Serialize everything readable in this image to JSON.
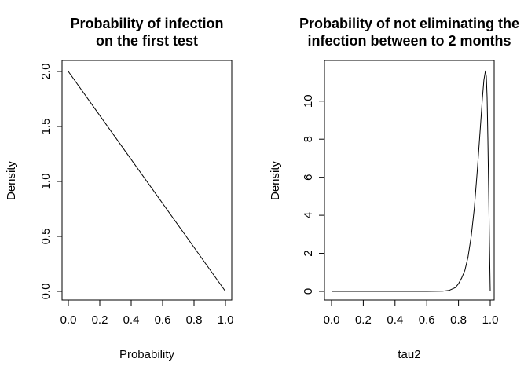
{
  "chart_data": [
    {
      "type": "line",
      "title": [
        "Probability of infection",
        "on the first test"
      ],
      "xlabel": "Probability",
      "ylabel": "Density",
      "xlim": [
        0,
        1
      ],
      "ylim": [
        0,
        2
      ],
      "xticks": [
        "0.0",
        "0.2",
        "0.4",
        "0.6",
        "0.8",
        "1.0"
      ],
      "yticks": [
        "0.0",
        "0.5",
        "1.0",
        "1.5",
        "2.0"
      ],
      "x": [
        0,
        1
      ],
      "y": [
        2,
        0
      ],
      "line_color": "#000000"
    },
    {
      "type": "line",
      "title": [
        "Probability of not eliminating the",
        "infection between to 2 months"
      ],
      "xlabel": "tau2",
      "ylabel": "Density",
      "xlim": [
        0,
        1
      ],
      "ylim": [
        0,
        11.6
      ],
      "xticks": [
        "0.0",
        "0.2",
        "0.4",
        "0.6",
        "0.8",
        "1.0"
      ],
      "yticks": [
        "0",
        "2",
        "4",
        "6",
        "8",
        "10"
      ],
      "x": [
        0,
        0.5,
        0.6,
        0.7,
        0.74,
        0.78,
        0.8,
        0.82,
        0.84,
        0.86,
        0.88,
        0.9,
        0.92,
        0.94,
        0.95,
        0.96,
        0.97,
        0.975,
        0.98,
        0.985,
        0.99,
        0.995,
        1.0
      ],
      "y": [
        0,
        0,
        0,
        0.01,
        0.05,
        0.2,
        0.4,
        0.7,
        1.1,
        1.8,
        2.9,
        4.4,
        6.5,
        8.9,
        10.1,
        11.1,
        11.6,
        11.3,
        10.2,
        8.0,
        5.3,
        2.5,
        0
      ],
      "line_color": "#000000"
    }
  ]
}
